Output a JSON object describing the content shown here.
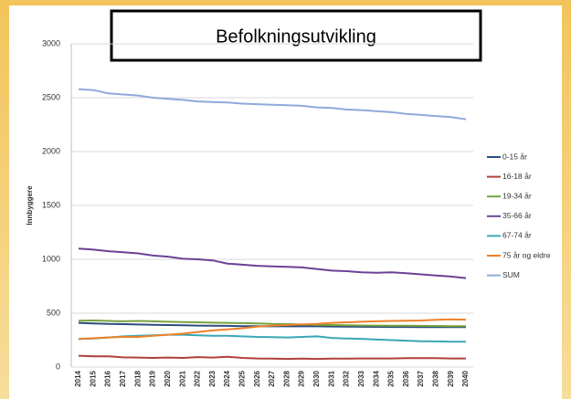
{
  "chart_data": {
    "type": "line",
    "title": "Befolkningsutvikling",
    "ylabel": "Innbyggere",
    "categories": [
      "2014",
      "2015",
      "2016",
      "2017",
      "2018",
      "2019",
      "2020",
      "2021",
      "2022",
      "2023",
      "2024",
      "2025",
      "2026",
      "2027",
      "2028",
      "2029",
      "2030",
      "2031",
      "2032",
      "2033",
      "2034",
      "2035",
      "2036",
      "2037",
      "2038",
      "2039",
      "2040"
    ],
    "ylim": [
      0,
      3000
    ],
    "yticks": [
      0,
      500,
      1000,
      1500,
      2000,
      2500,
      3000
    ],
    "grid": true,
    "legend": "right",
    "series": [
      {
        "name": "0-15 år",
        "color": "#2a4d7f",
        "values": [
          410,
          405,
          400,
          398,
          395,
          392,
          390,
          388,
          385,
          383,
          382,
          380,
          380,
          378,
          378,
          380,
          378,
          376,
          375,
          374,
          373,
          372,
          372,
          371,
          370,
          370,
          370
        ]
      },
      {
        "name": "16-18 år",
        "color": "#b0403c",
        "values": [
          105,
          100,
          100,
          90,
          88,
          85,
          88,
          85,
          92,
          88,
          95,
          85,
          80,
          78,
          75,
          78,
          75,
          78,
          78,
          80,
          80,
          80,
          82,
          82,
          82,
          80,
          80
        ]
      },
      {
        "name": "19-34 år",
        "color": "#76a33e",
        "values": [
          430,
          432,
          428,
          425,
          428,
          425,
          420,
          418,
          415,
          412,
          410,
          408,
          405,
          400,
          398,
          395,
          392,
          390,
          388,
          386,
          385,
          384,
          383,
          382,
          381,
          380,
          380
        ]
      },
      {
        "name": "35-66 år",
        "color": "#6c4196",
        "values": [
          1100,
          1090,
          1075,
          1065,
          1055,
          1035,
          1025,
          1005,
          1000,
          990,
          960,
          950,
          940,
          935,
          930,
          925,
          910,
          895,
          890,
          880,
          875,
          880,
          870,
          860,
          850,
          840,
          825
        ]
      },
      {
        "name": "67-74 år",
        "color": "#3aa6b5",
        "values": [
          260,
          265,
          275,
          285,
          290,
          295,
          300,
          300,
          295,
          290,
          290,
          285,
          280,
          278,
          275,
          280,
          285,
          270,
          265,
          262,
          255,
          250,
          245,
          240,
          238,
          235,
          235
        ]
      },
      {
        "name": "75 år og eldre",
        "color": "#ee8127",
        "values": [
          260,
          268,
          275,
          280,
          280,
          290,
          300,
          310,
          325,
          340,
          350,
          360,
          375,
          385,
          390,
          395,
          400,
          410,
          415,
          420,
          425,
          428,
          430,
          432,
          438,
          442,
          440
        ]
      },
      {
        "name": "SUM",
        "color": "#8eaadb",
        "values": [
          2580,
          2570,
          2540,
          2530,
          2520,
          2500,
          2490,
          2480,
          2465,
          2460,
          2455,
          2445,
          2440,
          2435,
          2430,
          2425,
          2410,
          2405,
          2390,
          2385,
          2375,
          2365,
          2350,
          2340,
          2330,
          2320,
          2300
        ]
      }
    ]
  }
}
